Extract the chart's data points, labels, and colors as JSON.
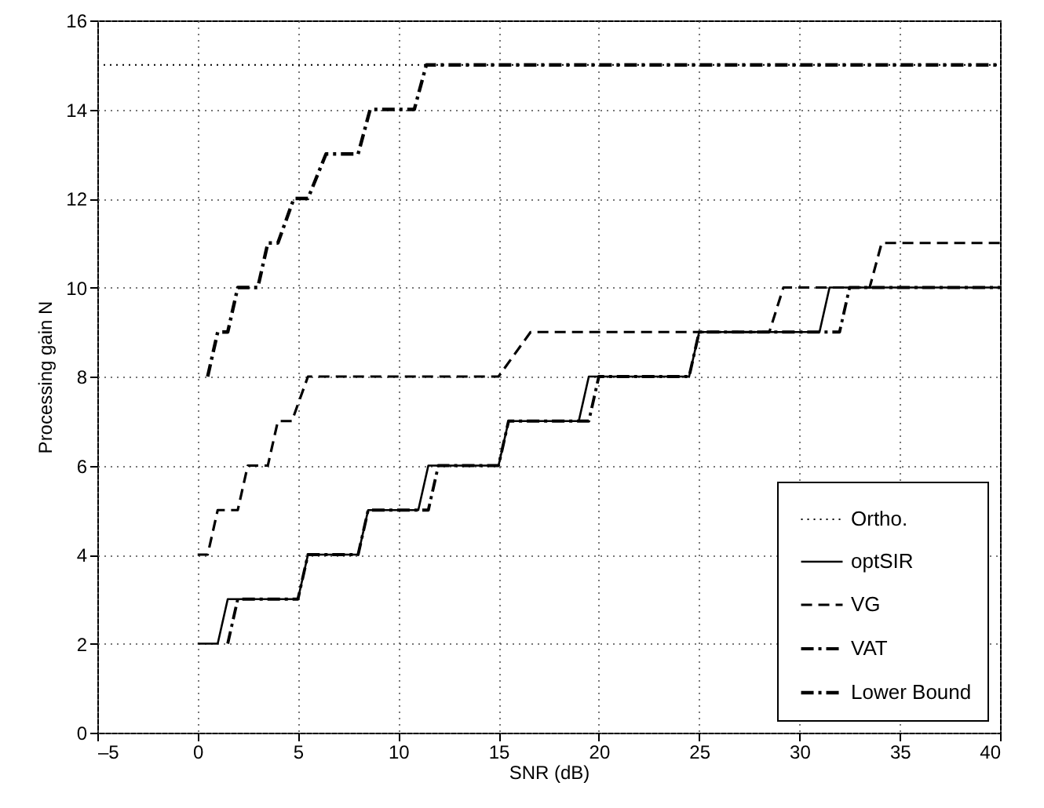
{
  "chart_data": {
    "type": "line",
    "xlabel": "SNR (dB)",
    "ylabel": "Processing gain N",
    "xlim": [
      -5,
      40
    ],
    "ylim": [
      0,
      16
    ],
    "xticks": [
      {
        "value": -5,
        "label": "–5"
      },
      0,
      5,
      10,
      15,
      20,
      25,
      30,
      35,
      40
    ],
    "yticks": [
      0,
      2,
      4,
      6,
      8,
      10,
      12,
      14,
      16
    ],
    "grid": true,
    "legend": "bottom right",
    "marker": "none",
    "series": [
      {
        "name": "Ortho.",
        "color": "#000000",
        "line_style": "dotted",
        "x": [
          -5,
          40
        ],
        "values": [
          15,
          15
        ]
      },
      {
        "name": "optSIR",
        "color": "#000000",
        "line_style": "solid",
        "x": [
          0,
          1,
          1.5,
          5,
          5.5,
          8,
          8.5,
          11,
          11.5,
          15,
          15.5,
          19,
          19.5,
          24.5,
          25,
          31,
          31.5,
          40
        ],
        "values": [
          2,
          2,
          3,
          3,
          4,
          4,
          5,
          5,
          6,
          6,
          7,
          7,
          8,
          8,
          9,
          9,
          10,
          10
        ]
      },
      {
        "name": "VG",
        "color": "#000000",
        "line_style": "dashed",
        "x": [
          0,
          0.5,
          1,
          2,
          2.5,
          3.5,
          4,
          4.7,
          5.5,
          15,
          16.6,
          28.5,
          29.2,
          33.5,
          34.1,
          40
        ],
        "values": [
          4,
          4,
          5,
          5,
          6,
          6,
          7,
          7,
          8,
          8,
          9,
          9,
          10,
          10,
          11,
          11
        ]
      },
      {
        "name": "VAT",
        "color": "#000000",
        "line_style": "dashdot",
        "x": [
          1.5,
          2,
          5,
          5.5,
          8,
          8.5,
          11.5,
          12,
          15,
          15.5,
          19.5,
          20,
          24.5,
          25,
          32,
          32.5,
          40
        ],
        "values": [
          2,
          3,
          3,
          4,
          4,
          5,
          5,
          6,
          6,
          7,
          7,
          8,
          8,
          9,
          9,
          10,
          10
        ]
      },
      {
        "name": "Lower Bound",
        "color": "#000000",
        "line_style": "dashdot",
        "x": [
          0.5,
          1,
          1.5,
          2,
          3,
          3.5,
          4,
          4.8,
          5.5,
          6.4,
          8,
          8.6,
          10.8,
          11.4,
          40
        ],
        "values": [
          8,
          9,
          9,
          10,
          10,
          11,
          11,
          12,
          12,
          13,
          13,
          14,
          14,
          15,
          15
        ]
      }
    ]
  }
}
